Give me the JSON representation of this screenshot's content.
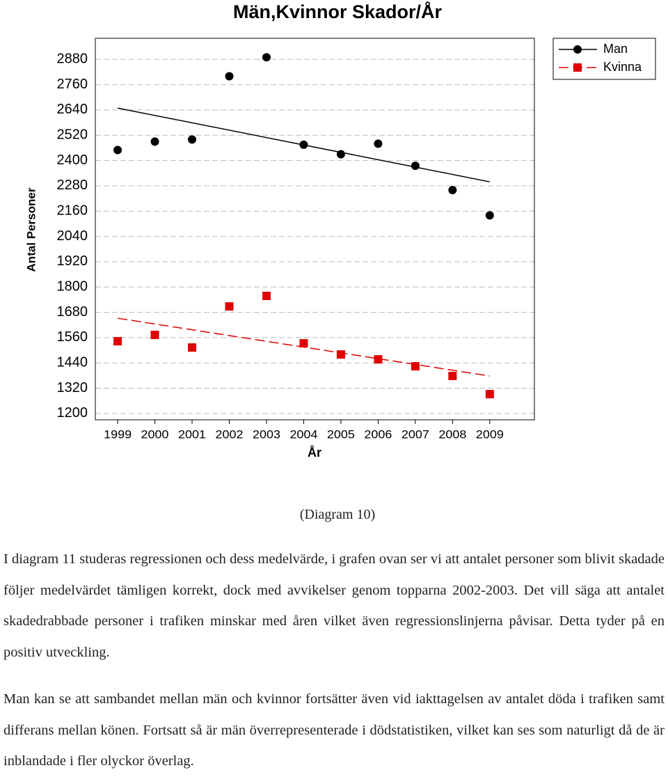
{
  "chart_data": {
    "type": "scatter",
    "title": "Män,Kvinnor Skador/År",
    "xlabel": "År",
    "ylabel": "Antal Personer",
    "x": [
      1999,
      2000,
      2001,
      2002,
      2003,
      2004,
      2005,
      2006,
      2007,
      2008,
      2009
    ],
    "series": [
      {
        "name": "Man",
        "color": "#000000",
        "marker": "circle",
        "line": "solid",
        "values": [
          2450,
          2490,
          2500,
          2800,
          2890,
          2475,
          2430,
          2480,
          2375,
          2260,
          2140
        ],
        "trend": [
          2649,
          2299
        ]
      },
      {
        "name": "Kvinna",
        "color": "#e00000",
        "marker": "square",
        "line": "dashed",
        "values": [
          1543,
          1573,
          1513,
          1708,
          1758,
          1533,
          1480,
          1457,
          1424,
          1378,
          1292
        ],
        "trend": [
          1652,
          1378
        ]
      }
    ],
    "xlim": [
      1998.4,
      2010.2
    ],
    "xticks": [
      1999,
      2000,
      2001,
      2002,
      2003,
      2004,
      2005,
      2006,
      2007,
      2008,
      2009
    ],
    "ylim": [
      1170,
      2980
    ],
    "yticks": [
      1200,
      1320,
      1440,
      1560,
      1680,
      1800,
      1920,
      2040,
      2160,
      2280,
      2400,
      2520,
      2640,
      2760,
      2880
    ],
    "grid": true,
    "legend": "upper right"
  },
  "caption": "(Diagram 10)",
  "paragraphs": [
    "I diagram 11 studeras regressionen och dess medelvärde, i grafen ovan ser vi att antalet personer som blivit skadade följer medelvärdet tämligen korrekt, dock med avvikelser genom topparna 2002-2003. Det vill säga att antalet skadedrabbade personer i trafiken minskar med åren vilket även regressionslinjerna påvisar. Detta tyder på en positiv utveckling.",
    "Man kan se att sambandet mellan män och kvinnor fortsätter även vid iakttagelsen av antalet döda i trafiken samt differans mellan könen. Fortsatt så är män överrepresenterade i dödstatistiken, vilket kan ses som naturligt då de är inblandade i fler olyckor överlag."
  ]
}
